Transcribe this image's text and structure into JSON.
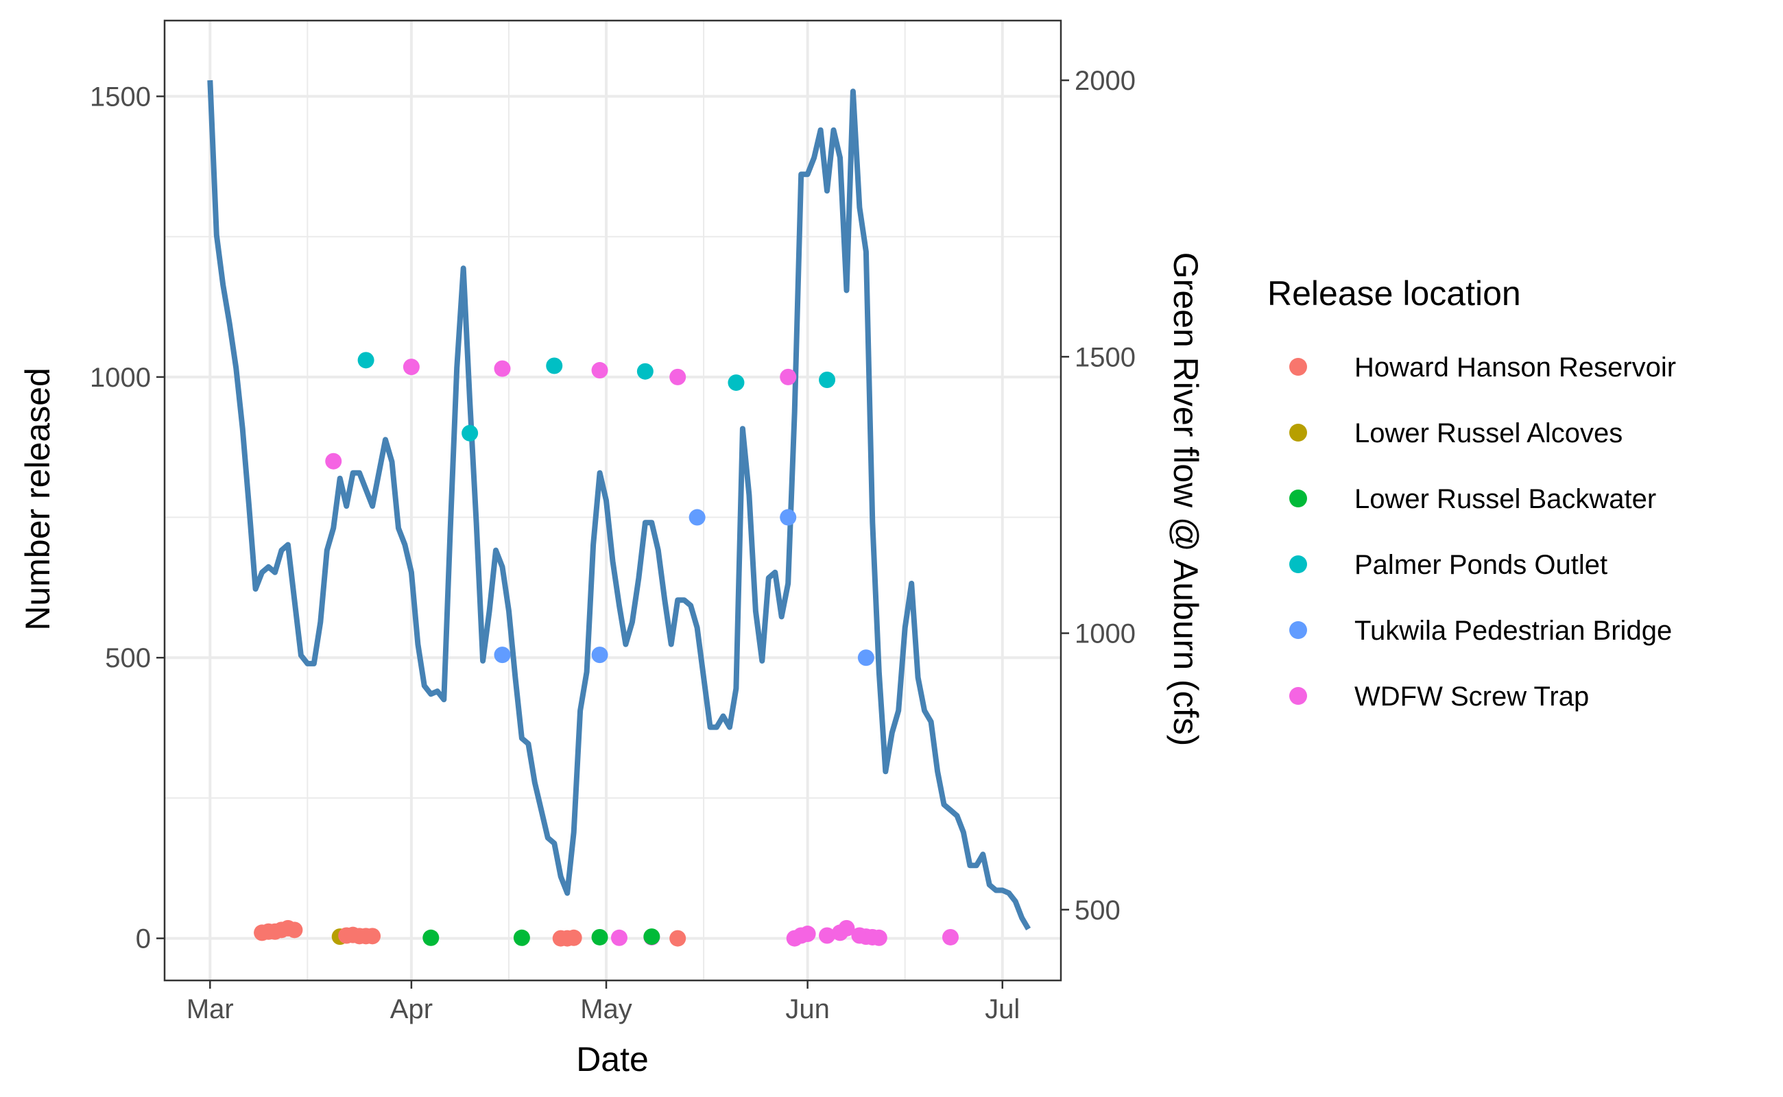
{
  "chart_data": {
    "type": "line",
    "xlabel": "Date",
    "ylabel": "Number released",
    "y2label": "Green River flow @ Auburn (cfs)",
    "x_ticks": [
      {
        "label": "Mar",
        "date": "2021-03-01"
      },
      {
        "label": "Apr",
        "date": "2021-04-01"
      },
      {
        "label": "May",
        "date": "2021-05-01"
      },
      {
        "label": "Jun",
        "date": "2021-06-01"
      },
      {
        "label": "Jul",
        "date": "2021-07-01"
      }
    ],
    "xlim": [
      "2021-02-22",
      "2021-07-10"
    ],
    "ylim": [
      -75,
      1635
    ],
    "y_ticks": [
      0,
      500,
      1000,
      1500
    ],
    "y2lim": [
      372,
      2108
    ],
    "y2_ticks": [
      500,
      1000,
      1500,
      2000
    ],
    "grid": true,
    "legend": {
      "title": "Release location",
      "position": "right",
      "entries": [
        {
          "name": "Howard Hanson Reservoir",
          "color": "#F8766D"
        },
        {
          "name": "Lower Russel Alcoves",
          "color": "#B79F00"
        },
        {
          "name": "Lower Russel Backwater",
          "color": "#00BA38"
        },
        {
          "name": "Palmer Ponds Outlet",
          "color": "#00BFC4"
        },
        {
          "name": "Tukwila Pedestrian Bridge",
          "color": "#619CFF"
        },
        {
          "name": "WDFW Screw Trap",
          "color": "#F564E3"
        }
      ]
    },
    "flow_series": {
      "name": "Green River flow @ Auburn (cfs)",
      "color": "#4682B4",
      "points": [
        [
          "2021-03-01",
          2000
        ],
        [
          "2021-03-02",
          1720
        ],
        [
          "2021-03-03",
          1630
        ],
        [
          "2021-03-04",
          1560
        ],
        [
          "2021-03-05",
          1480
        ],
        [
          "2021-03-06",
          1370
        ],
        [
          "2021-03-07",
          1230
        ],
        [
          "2021-03-08",
          1080
        ],
        [
          "2021-03-09",
          1110
        ],
        [
          "2021-03-10",
          1120
        ],
        [
          "2021-03-11",
          1110
        ],
        [
          "2021-03-12",
          1150
        ],
        [
          "2021-03-13",
          1160
        ],
        [
          "2021-03-14",
          1060
        ],
        [
          "2021-03-15",
          960
        ],
        [
          "2021-03-16",
          945
        ],
        [
          "2021-03-17",
          945
        ],
        [
          "2021-03-18",
          1020
        ],
        [
          "2021-03-19",
          1150
        ],
        [
          "2021-03-20",
          1190
        ],
        [
          "2021-03-21",
          1280
        ],
        [
          "2021-03-22",
          1230
        ],
        [
          "2021-03-23",
          1290
        ],
        [
          "2021-03-24",
          1290
        ],
        [
          "2021-03-25",
          1260
        ],
        [
          "2021-03-26",
          1230
        ],
        [
          "2021-03-27",
          1290
        ],
        [
          "2021-03-28",
          1350
        ],
        [
          "2021-03-29",
          1310
        ],
        [
          "2021-03-30",
          1190
        ],
        [
          "2021-03-31",
          1160
        ],
        [
          "2021-04-01",
          1110
        ],
        [
          "2021-04-02",
          980
        ],
        [
          "2021-04-03",
          905
        ],
        [
          "2021-04-04",
          890
        ],
        [
          "2021-04-05",
          895
        ],
        [
          "2021-04-06",
          880
        ],
        [
          "2021-04-07",
          1190
        ],
        [
          "2021-04-08",
          1480
        ],
        [
          "2021-04-09",
          1660
        ],
        [
          "2021-04-10",
          1420
        ],
        [
          "2021-04-11",
          1200
        ],
        [
          "2021-04-12",
          950
        ],
        [
          "2021-04-13",
          1040
        ],
        [
          "2021-04-14",
          1150
        ],
        [
          "2021-04-15",
          1120
        ],
        [
          "2021-04-16",
          1040
        ],
        [
          "2021-04-17",
          920
        ],
        [
          "2021-04-18",
          810
        ],
        [
          "2021-04-19",
          800
        ],
        [
          "2021-04-20",
          730
        ],
        [
          "2021-04-21",
          680
        ],
        [
          "2021-04-22",
          630
        ],
        [
          "2021-04-23",
          620
        ],
        [
          "2021-04-24",
          560
        ],
        [
          "2021-04-25",
          530
        ],
        [
          "2021-04-26",
          640
        ],
        [
          "2021-04-27",
          860
        ],
        [
          "2021-04-28",
          930
        ],
        [
          "2021-04-29",
          1160
        ],
        [
          "2021-04-30",
          1290
        ],
        [
          "2021-05-01",
          1240
        ],
        [
          "2021-05-02",
          1130
        ],
        [
          "2021-05-03",
          1050
        ],
        [
          "2021-05-04",
          980
        ],
        [
          "2021-05-05",
          1020
        ],
        [
          "2021-05-06",
          1100
        ],
        [
          "2021-05-07",
          1200
        ],
        [
          "2021-05-08",
          1200
        ],
        [
          "2021-05-09",
          1150
        ],
        [
          "2021-05-10",
          1060
        ],
        [
          "2021-05-11",
          980
        ],
        [
          "2021-05-12",
          1060
        ],
        [
          "2021-05-13",
          1060
        ],
        [
          "2021-05-14",
          1050
        ],
        [
          "2021-05-15",
          1010
        ],
        [
          "2021-05-16",
          920
        ],
        [
          "2021-05-17",
          830
        ],
        [
          "2021-05-18",
          830
        ],
        [
          "2021-05-19",
          850
        ],
        [
          "2021-05-20",
          830
        ],
        [
          "2021-05-21",
          900
        ],
        [
          "2021-05-22",
          1370
        ],
        [
          "2021-05-23",
          1250
        ],
        [
          "2021-05-24",
          1040
        ],
        [
          "2021-05-25",
          950
        ],
        [
          "2021-05-26",
          1100
        ],
        [
          "2021-05-27",
          1110
        ],
        [
          "2021-05-28",
          1030
        ],
        [
          "2021-05-29",
          1090
        ],
        [
          "2021-05-30",
          1400
        ],
        [
          "2021-05-31",
          1830
        ],
        [
          "2021-06-01",
          1830
        ],
        [
          "2021-06-02",
          1860
        ],
        [
          "2021-06-03",
          1910
        ],
        [
          "2021-06-04",
          1800
        ],
        [
          "2021-06-05",
          1910
        ],
        [
          "2021-06-06",
          1860
        ],
        [
          "2021-06-07",
          1620
        ],
        [
          "2021-06-08",
          1980
        ],
        [
          "2021-06-09",
          1770
        ],
        [
          "2021-06-10",
          1690
        ],
        [
          "2021-06-11",
          1200
        ],
        [
          "2021-06-12",
          930
        ],
        [
          "2021-06-13",
          750
        ],
        [
          "2021-06-14",
          820
        ],
        [
          "2021-06-15",
          860
        ],
        [
          "2021-06-16",
          1010
        ],
        [
          "2021-06-17",
          1090
        ],
        [
          "2021-06-18",
          920
        ],
        [
          "2021-06-19",
          860
        ],
        [
          "2021-06-20",
          840
        ],
        [
          "2021-06-21",
          750
        ],
        [
          "2021-06-22",
          690
        ],
        [
          "2021-06-23",
          680
        ],
        [
          "2021-06-24",
          670
        ],
        [
          "2021-06-25",
          640
        ],
        [
          "2021-06-26",
          580
        ],
        [
          "2021-06-27",
          580
        ],
        [
          "2021-06-28",
          600
        ],
        [
          "2021-06-29",
          545
        ],
        [
          "2021-06-30",
          535
        ],
        [
          "2021-07-01",
          535
        ],
        [
          "2021-07-02",
          530
        ],
        [
          "2021-07-03",
          515
        ],
        [
          "2021-07-04",
          485
        ],
        [
          "2021-07-05",
          465
        ]
      ]
    },
    "release_points": [
      {
        "date": "2021-03-09",
        "value": 10,
        "location": "Howard Hanson Reservoir"
      },
      {
        "date": "2021-03-10",
        "value": 12,
        "location": "Howard Hanson Reservoir"
      },
      {
        "date": "2021-03-11",
        "value": 12,
        "location": "Howard Hanson Reservoir"
      },
      {
        "date": "2021-03-12",
        "value": 15,
        "location": "Howard Hanson Reservoir"
      },
      {
        "date": "2021-03-13",
        "value": 18,
        "location": "Howard Hanson Reservoir"
      },
      {
        "date": "2021-03-14",
        "value": 15,
        "location": "Howard Hanson Reservoir"
      },
      {
        "date": "2021-03-21",
        "value": 3,
        "location": "Lower Russel Alcoves"
      },
      {
        "date": "2021-03-22",
        "value": 5,
        "location": "Howard Hanson Reservoir"
      },
      {
        "date": "2021-03-23",
        "value": 6,
        "location": "Howard Hanson Reservoir"
      },
      {
        "date": "2021-03-24",
        "value": 4,
        "location": "Howard Hanson Reservoir"
      },
      {
        "date": "2021-03-25",
        "value": 4,
        "location": "Howard Hanson Reservoir"
      },
      {
        "date": "2021-03-26",
        "value": 4,
        "location": "Howard Hanson Reservoir"
      },
      {
        "date": "2021-04-04",
        "value": 1,
        "location": "Lower Russel Backwater"
      },
      {
        "date": "2021-04-18",
        "value": 1,
        "location": "Lower Russel Backwater"
      },
      {
        "date": "2021-04-24",
        "value": 0,
        "location": "Howard Hanson Reservoir"
      },
      {
        "date": "2021-04-25",
        "value": 0,
        "location": "Howard Hanson Reservoir"
      },
      {
        "date": "2021-04-26",
        "value": 1,
        "location": "Howard Hanson Reservoir"
      },
      {
        "date": "2021-04-30",
        "value": 2,
        "location": "Lower Russel Backwater"
      },
      {
        "date": "2021-05-03",
        "value": 1,
        "location": "WDFW Screw Trap"
      },
      {
        "date": "2021-05-08",
        "value": 2,
        "location": "WDFW Screw Trap"
      },
      {
        "date": "2021-05-08",
        "value": 3,
        "location": "Lower Russel Backwater"
      },
      {
        "date": "2021-05-12",
        "value": 0,
        "location": "Howard Hanson Reservoir"
      },
      {
        "date": "2021-05-30",
        "value": 0,
        "location": "WDFW Screw Trap"
      },
      {
        "date": "2021-05-31",
        "value": 5,
        "location": "WDFW Screw Trap"
      },
      {
        "date": "2021-06-01",
        "value": 8,
        "location": "WDFW Screw Trap"
      },
      {
        "date": "2021-06-04",
        "value": 5,
        "location": "WDFW Screw Trap"
      },
      {
        "date": "2021-06-06",
        "value": 10,
        "location": "WDFW Screw Trap"
      },
      {
        "date": "2021-06-07",
        "value": 18,
        "location": "WDFW Screw Trap"
      },
      {
        "date": "2021-06-09",
        "value": 5,
        "location": "WDFW Screw Trap"
      },
      {
        "date": "2021-06-10",
        "value": 3,
        "location": "WDFW Screw Trap"
      },
      {
        "date": "2021-06-11",
        "value": 2,
        "location": "WDFW Screw Trap"
      },
      {
        "date": "2021-06-12",
        "value": 1,
        "location": "WDFW Screw Trap"
      },
      {
        "date": "2021-06-23",
        "value": 2,
        "location": "WDFW Screw Trap"
      },
      {
        "date": "2021-03-20",
        "value": 850,
        "location": "WDFW Screw Trap"
      },
      {
        "date": "2021-03-25",
        "value": 1030,
        "location": "Palmer Ponds Outlet"
      },
      {
        "date": "2021-04-01",
        "value": 1018,
        "location": "WDFW Screw Trap"
      },
      {
        "date": "2021-04-10",
        "value": 900,
        "location": "Palmer Ponds Outlet"
      },
      {
        "date": "2021-04-15",
        "value": 1015,
        "location": "WDFW Screw Trap"
      },
      {
        "date": "2021-04-15",
        "value": 505,
        "location": "Tukwila Pedestrian Bridge"
      },
      {
        "date": "2021-04-23",
        "value": 1020,
        "location": "Palmer Ponds Outlet"
      },
      {
        "date": "2021-04-30",
        "value": 1012,
        "location": "WDFW Screw Trap"
      },
      {
        "date": "2021-04-30",
        "value": 505,
        "location": "Tukwila Pedestrian Bridge"
      },
      {
        "date": "2021-05-07",
        "value": 1010,
        "location": "Palmer Ponds Outlet"
      },
      {
        "date": "2021-05-12",
        "value": 1000,
        "location": "WDFW Screw Trap"
      },
      {
        "date": "2021-05-15",
        "value": 750,
        "location": "Tukwila Pedestrian Bridge"
      },
      {
        "date": "2021-05-21",
        "value": 990,
        "location": "Palmer Ponds Outlet"
      },
      {
        "date": "2021-05-29",
        "value": 1000,
        "location": "WDFW Screw Trap"
      },
      {
        "date": "2021-05-29",
        "value": 750,
        "location": "Tukwila Pedestrian Bridge"
      },
      {
        "date": "2021-06-04",
        "value": 995,
        "location": "Palmer Ponds Outlet"
      },
      {
        "date": "2021-06-10",
        "value": 500,
        "location": "Tukwila Pedestrian Bridge"
      }
    ]
  }
}
